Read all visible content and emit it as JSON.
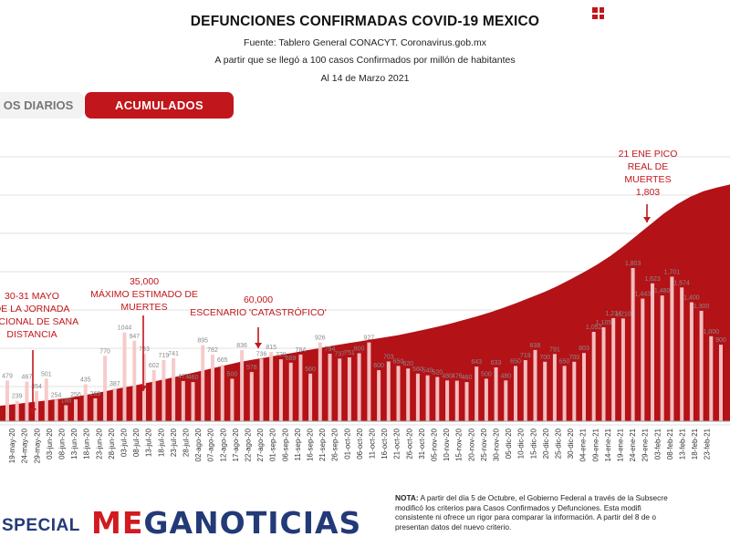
{
  "header": {
    "title": "DEFUNCIONES CONFIRMADAS COVID-19 MEXICO",
    "source": "Fuente: Tablero General CONACYT. Coronavirus.gob.mx",
    "subtitle": "A partir que se llegó a 100 casos Confirmados por millón de habitantes",
    "date": "Al 14 de Marzo 2021"
  },
  "tabs": {
    "diarios": "OS DIARIOS",
    "acumulados": "ACUMULADOS"
  },
  "colors": {
    "accent": "#c1161b",
    "area": "#b31217",
    "bars": "#f7c8c8",
    "brand_blue": "#233a78"
  },
  "chart_data": {
    "type": "bar",
    "title": "DEFUNCIONES CONFIRMADAS COVID-19 MEXICO",
    "xlabel": "",
    "ylabel": "",
    "grid": true,
    "x_start": "2020-05-19",
    "x_end": "2021-03-14",
    "x_tick_labels": [
      "19-may-20",
      "24-may-20",
      "29-may-20",
      "03-jun-20",
      "08-jun-20",
      "13-jun-20",
      "18-jun-20",
      "23-jun-20",
      "28-jun-20",
      "03-jul-20",
      "08-jul-20",
      "13-jul-20",
      "18-jul-20",
      "23-jul-20",
      "28-jul-20",
      "02-ago-20",
      "07-ago-20",
      "12-ago-20",
      "17-ago-20",
      "22-ago-20",
      "27-ago-20",
      "01-sep-20",
      "06-sep-20",
      "11-sep-20",
      "16-sep-20",
      "21-sep-20",
      "26-sep-20",
      "01-oct-20",
      "06-oct-20",
      "11-oct-20",
      "16-oct-20",
      "21-oct-20",
      "26-oct-20",
      "31-oct-20",
      "05-nov-20",
      "10-nov-20",
      "15-nov-20",
      "20-nov-20",
      "25-nov-20",
      "30-nov-20",
      "05-dic-20",
      "10-dic-20",
      "15-dic-20",
      "20-dic-20",
      "25-dic-20",
      "30-dic-20",
      "04-ene-21",
      "09-ene-21",
      "14-ene-21",
      "19-ene-21",
      "24-ene-21",
      "29-ene-21",
      "03-feb-21",
      "08-feb-21",
      "13-feb-21",
      "18-feb-21",
      "23-feb-21"
    ],
    "series": [
      {
        "values": [
          479,
          239,
          467,
          354,
          501,
          254,
          188,
          256,
          435,
          269,
          770,
          387,
          1044,
          947,
          793,
          602,
          719,
          741,
          473,
          460,
          895,
          782,
          665,
          500,
          836,
          578,
          736,
          815,
          729,
          689,
          784,
          560,
          926,
          794,
          737,
          751,
          800,
          927,
          600,
          703,
          650,
          620,
          560,
          540,
          520,
          480,
          476,
          460,
          643,
          500,
          633,
          480,
          650,
          719,
          838,
          700,
          791,
          650,
          700,
          803,
          1052,
          1105,
          1214,
          1210,
          1803,
          1443,
          1623,
          1480,
          1701,
          1574,
          1400,
          1300,
          1000,
          900
        ],
        "labels": [
          "479",
          "239",
          "467",
          "354",
          "501",
          "254",
          "188",
          "256",
          "435",
          "269",
          "770",
          "387",
          "1044",
          "947",
          "793",
          "602",
          "719",
          "741",
          "473",
          "460",
          "895",
          "782",
          "665",
          "500",
          "836",
          "578",
          "736",
          "815",
          "729",
          "689",
          "784",
          "560",
          "926",
          "794",
          "737",
          "751",
          "800",
          "927",
          "600",
          "703",
          "650",
          "620",
          "560",
          "540",
          "520",
          "480",
          "476",
          "460",
          "643",
          "500",
          "633",
          "480",
          "650",
          "719",
          "838",
          "700",
          "791",
          "650",
          "700",
          "803",
          "1,052",
          "1,105",
          "1,214",
          "1,210",
          "1,803",
          "1,443",
          "1,623",
          "1,480",
          "1,701",
          "1,574",
          "1,400",
          "1,300",
          "1,000",
          "900"
        ]
      },
      {
        "values": [
          50,
          55,
          60,
          65,
          70,
          75,
          82,
          90,
          98,
          107,
          115,
          124,
          133,
          142,
          152,
          162,
          172,
          182,
          192,
          200,
          207,
          215,
          222,
          230,
          237,
          245,
          252,
          259,
          266,
          273,
          280,
          289,
          298,
          308,
          318,
          330,
          342,
          355,
          370,
          386,
          403,
          420,
          440,
          462,
          485,
          510,
          538,
          570,
          605,
          640,
          675,
          705,
          730,
          748,
          760,
          770
        ]
      }
    ],
    "annotations": [
      {
        "text": "30-31 MAYO",
        "lines": [
          "30-31 MAYO",
          "DE LA JORNADA",
          "NACIONAL DE SANA",
          "DISTANCIA"
        ]
      },
      {
        "text": "35,000 MÁXIMO ESTIMADO DE MUERTES",
        "lines": [
          "35,000",
          "MÁXIMO ESTIMADO DE",
          "MUERTES"
        ]
      },
      {
        "text": "60,000 ESCENARIO 'CATASTRÓFICO'",
        "lines": [
          "60,000",
          "ESCENARIO 'CATASTRÓFICO'"
        ]
      },
      {
        "text": "21 ENE PICO REAL DE MUERTES 1,803",
        "lines": [
          "21 ENE PICO",
          "REAL DE",
          "MUERTES",
          "1,803"
        ]
      }
    ]
  },
  "footer": {
    "special": "SPECIAL",
    "brand_first": "ME",
    "brand_rest": "GANOTICIAS",
    "note_bold": "NOTA:",
    "note_lines": [
      " A partir del día 5 de Octubre, el Gobierno Federal a través de la Subsecre",
      "modificó los criterios para Casos Confirmados y Defunciones. Esta modifi",
      "consistente ni ofrece un rigor para comparar la información. A partir del 8 de o",
      "presentan datos del nuevo criterio."
    ]
  }
}
